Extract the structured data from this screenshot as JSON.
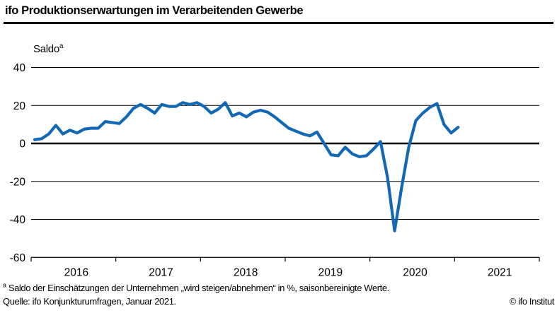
{
  "header": {
    "title": "ifo Produktionserwartungen im Verarbeitenden Gewerbe"
  },
  "chart_data": {
    "type": "line",
    "title": "ifo Produktionserwartungen im Verarbeitenden Gewerbe",
    "ylabel": {
      "text": "Saldo",
      "superscript": "a"
    },
    "xlabel": "",
    "ylim": [
      -60,
      40
    ],
    "yticks": [
      40,
      20,
      0,
      -20,
      -40,
      -60
    ],
    "x_tick_years": [
      "2016",
      "2017",
      "2018",
      "2019",
      "2020",
      "2021"
    ],
    "frequency": "monthly",
    "x_range": {
      "start": "2016-01",
      "end": "2021-01"
    },
    "grid": "horizontal",
    "legend_position": "none",
    "zero_line_emphasized": true,
    "series": [
      {
        "name": "Produktionserwartungen (Saldo, saisonbereinigt)",
        "color": "#1268b4",
        "values": [
          2,
          2.5,
          5,
          9.5,
          5,
          7,
          5.5,
          7.5,
          8,
          8,
          11.5,
          11,
          10.5,
          14,
          18.5,
          20.5,
          18.5,
          16,
          20.5,
          19.5,
          19.5,
          21.5,
          20.5,
          21.5,
          19.5,
          16,
          18,
          21.5,
          14.5,
          16,
          14,
          16.5,
          17.5,
          16.5,
          14,
          11,
          8,
          6.5,
          5,
          4,
          6,
          0,
          -6,
          -6.5,
          -2,
          -5.5,
          -7,
          -6.5,
          -3,
          1,
          -18,
          -46,
          -23,
          -2,
          12,
          16,
          19,
          21,
          10,
          5.5,
          8.5
        ]
      }
    ]
  },
  "footnotes": {
    "note_marker": "a",
    "note_text": " Saldo der Einschätzungen der Unternehmen „wird steigen/abnehmen“ in %, saisonbereinigte Werte.",
    "source": "Quelle: ifo Konjunkturumfragen, Januar 2021.",
    "copyright": "© ifo Institut"
  },
  "colors": {
    "line": "#1268b4",
    "axis": "#000000",
    "background": "#ffffff"
  }
}
